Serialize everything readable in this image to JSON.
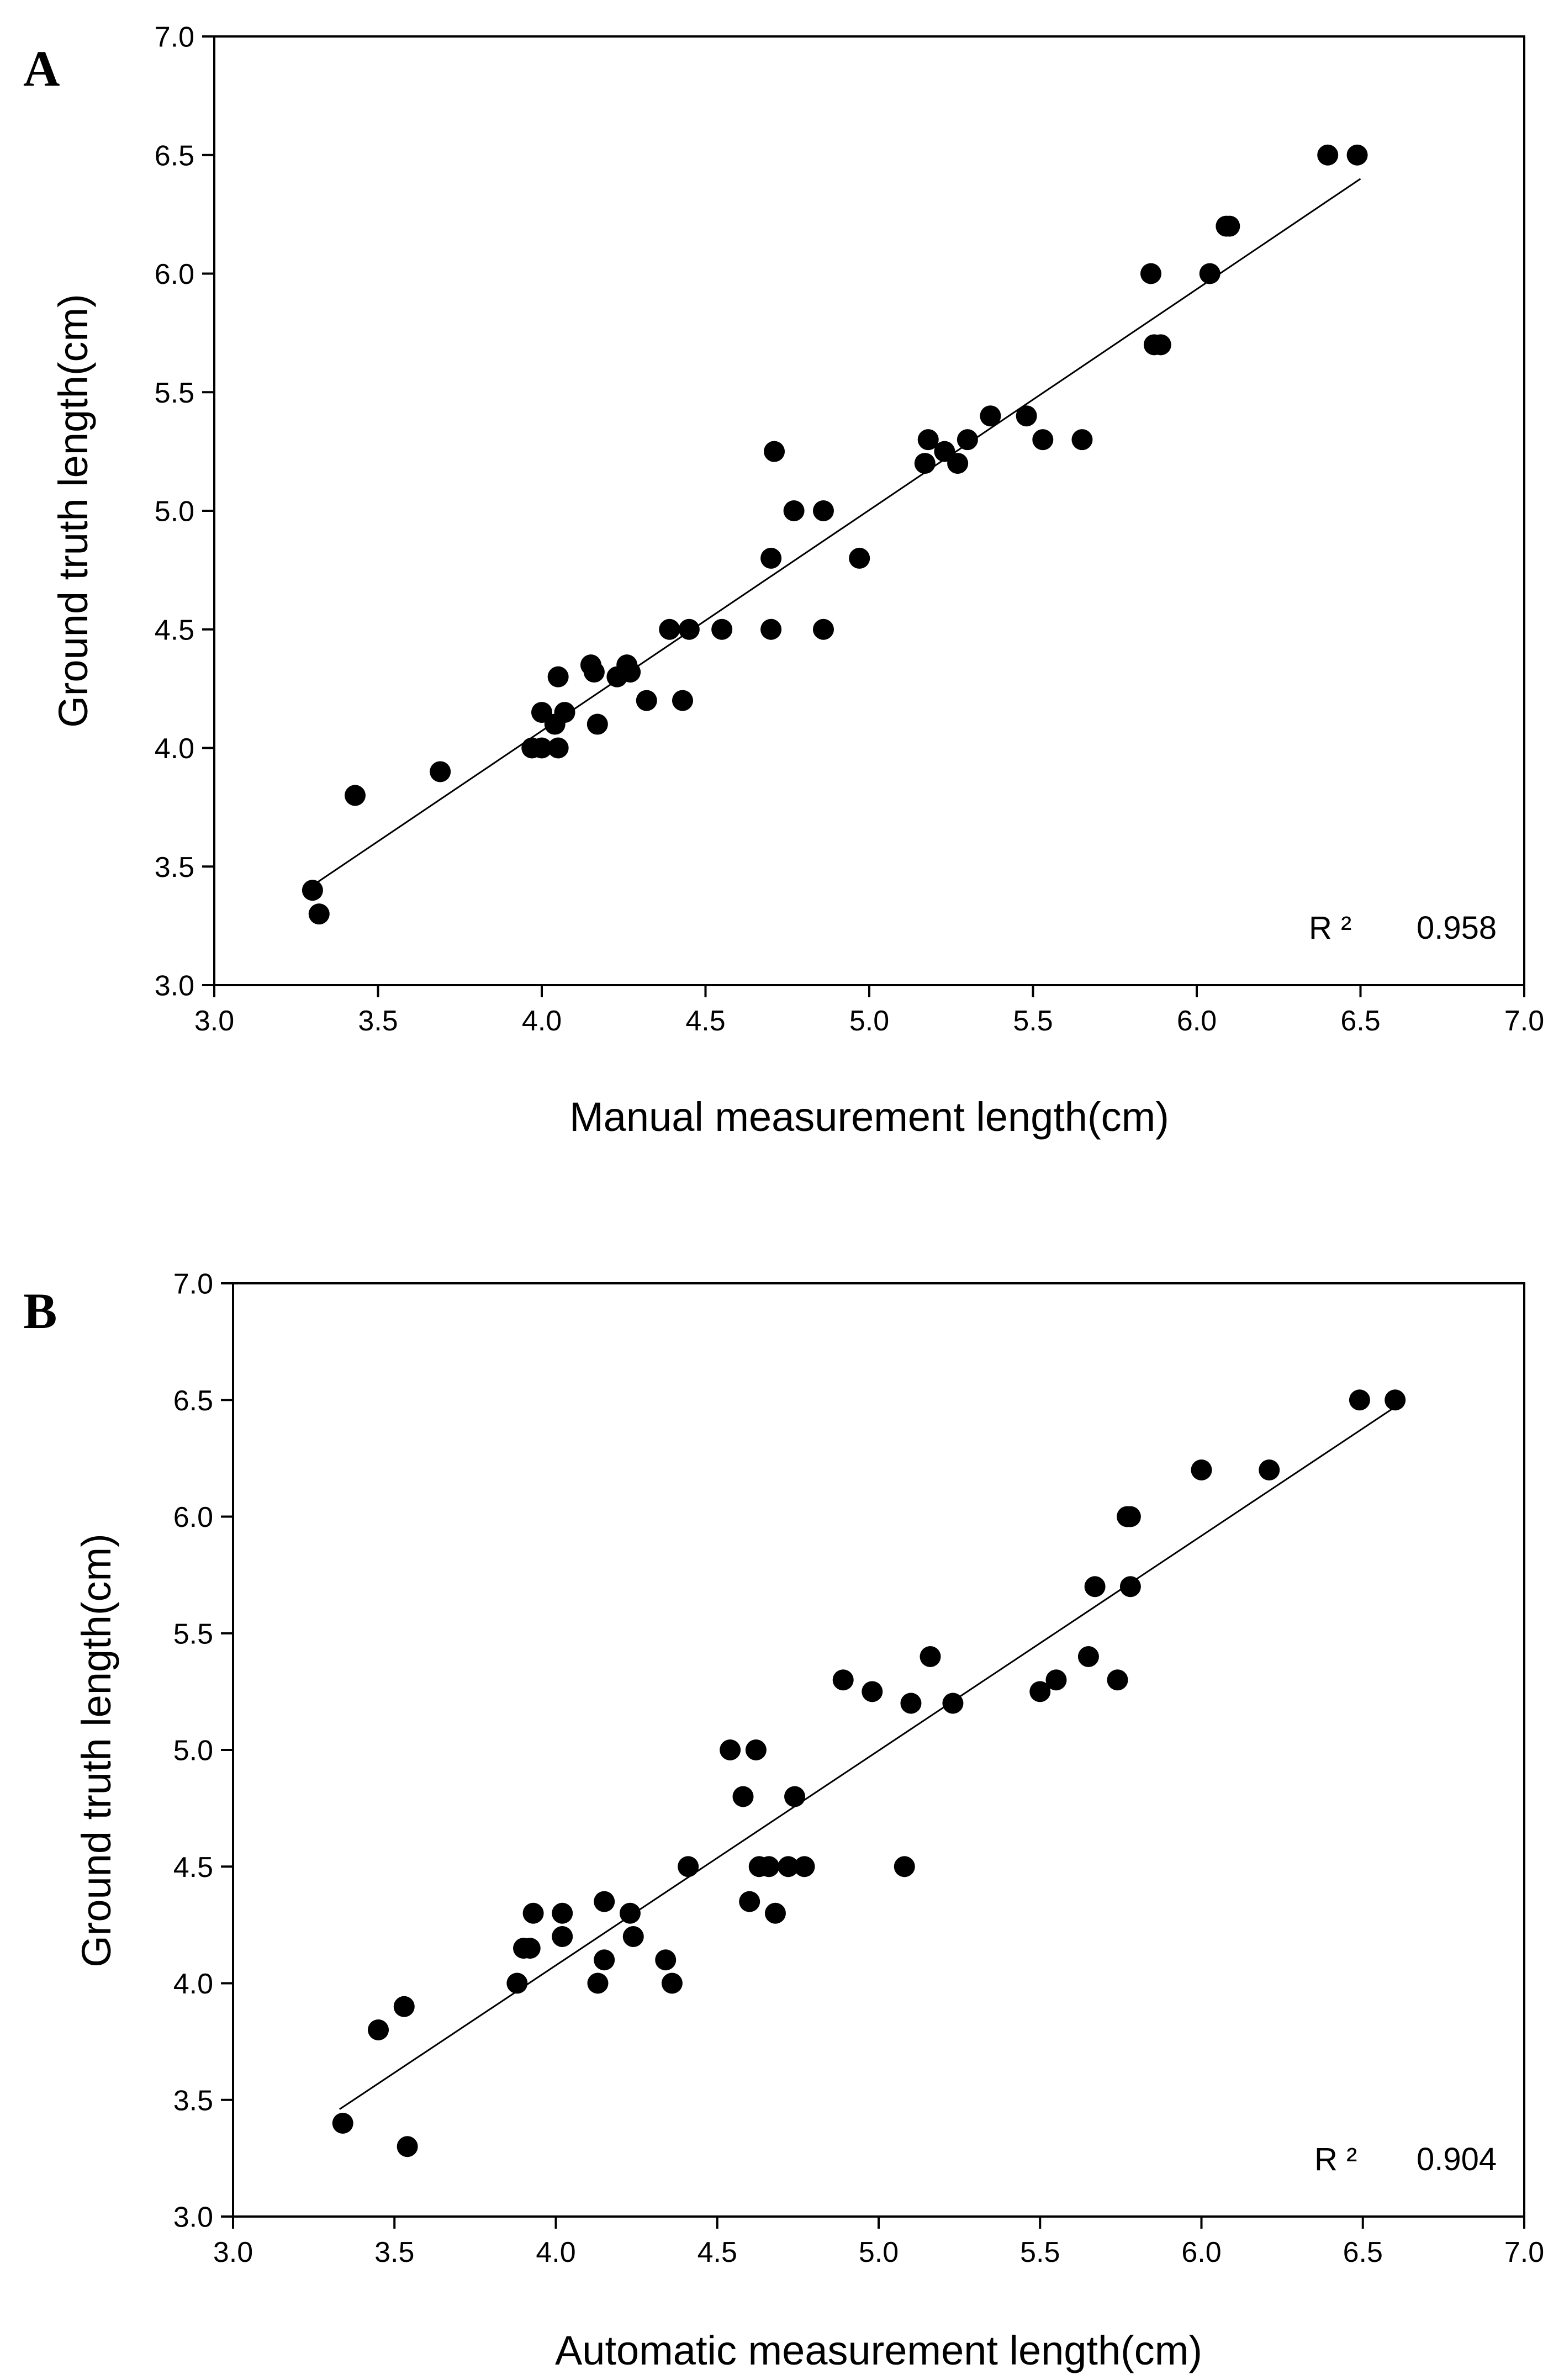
{
  "figure": {
    "background": "#ffffff",
    "point_color": "#000000",
    "line_color": "#000000"
  },
  "chart_data": [
    {
      "panel_label": "A",
      "type": "scatter",
      "title": "",
      "xlabel": "Manual measurement length(cm)",
      "ylabel": "Ground truth length(cm)",
      "xlim": [
        3.0,
        7.0
      ],
      "ylim": [
        3.0,
        7.0
      ],
      "xticks": [
        "3.0",
        "3.5",
        "4.0",
        "4.5",
        "5.0",
        "5.5",
        "6.0",
        "6.5",
        "7.0"
      ],
      "yticks": [
        "3.0",
        "3.5",
        "4.0",
        "4.5",
        "5.0",
        "5.5",
        "6.0",
        "6.5",
        "7.0"
      ],
      "grid": false,
      "r2_label": "R ²",
      "r2_value": "0.958",
      "regression": {
        "x": [
          3.3,
          6.5
        ],
        "y": [
          3.42,
          6.4
        ]
      },
      "points": [
        [
          3.3,
          3.4
        ],
        [
          3.32,
          3.3
        ],
        [
          3.43,
          3.8
        ],
        [
          3.69,
          3.9
        ],
        [
          3.97,
          4.0
        ],
        [
          4.0,
          4.0
        ],
        [
          4.0,
          4.15
        ],
        [
          4.04,
          4.1
        ],
        [
          4.05,
          4.3
        ],
        [
          4.05,
          4.0
        ],
        [
          4.07,
          4.15
        ],
        [
          4.15,
          4.35
        ],
        [
          4.16,
          4.32
        ],
        [
          4.17,
          4.1
        ],
        [
          4.23,
          4.3
        ],
        [
          4.26,
          4.35
        ],
        [
          4.27,
          4.32
        ],
        [
          4.32,
          4.2
        ],
        [
          4.39,
          4.5
        ],
        [
          4.43,
          4.2
        ],
        [
          4.45,
          4.5
        ],
        [
          4.55,
          4.5
        ],
        [
          4.7,
          4.5
        ],
        [
          4.7,
          4.8
        ],
        [
          4.71,
          5.25
        ],
        [
          4.77,
          5.0
        ],
        [
          4.86,
          5.0
        ],
        [
          4.86,
          4.5
        ],
        [
          4.97,
          4.8
        ],
        [
          5.17,
          5.2
        ],
        [
          5.18,
          5.3
        ],
        [
          5.23,
          5.25
        ],
        [
          5.27,
          5.2
        ],
        [
          5.3,
          5.3
        ],
        [
          5.37,
          5.4
        ],
        [
          5.48,
          5.4
        ],
        [
          5.53,
          5.3
        ],
        [
          5.65,
          5.3
        ],
        [
          5.86,
          6.0
        ],
        [
          5.87,
          5.7
        ],
        [
          5.89,
          5.7
        ],
        [
          6.04,
          6.0
        ],
        [
          6.09,
          6.2
        ],
        [
          6.1,
          6.2
        ],
        [
          6.4,
          6.5
        ],
        [
          6.49,
          6.5
        ]
      ]
    },
    {
      "panel_label": "B",
      "type": "scatter",
      "title": "",
      "xlabel": "Automatic measurement length(cm)",
      "ylabel": "Ground truth length(cm)",
      "xlim": [
        3.0,
        7.0
      ],
      "ylim": [
        3.0,
        7.0
      ],
      "xticks": [
        "3.0",
        "3.5",
        "4.0",
        "4.5",
        "5.0",
        "5.5",
        "6.0",
        "6.5",
        "7.0"
      ],
      "yticks": [
        "3.0",
        "3.5",
        "4.0",
        "4.5",
        "5.0",
        "5.5",
        "6.0",
        "6.5",
        "7.0"
      ],
      "grid": false,
      "r2_label": "R ²",
      "r2_value": "0.904",
      "regression": {
        "x": [
          3.33,
          6.6
        ],
        "y": [
          3.46,
          6.47
        ]
      },
      "points": [
        [
          3.34,
          3.4
        ],
        [
          3.45,
          3.8
        ],
        [
          3.53,
          3.9
        ],
        [
          3.54,
          3.3
        ],
        [
          3.88,
          4.0
        ],
        [
          3.9,
          4.15
        ],
        [
          3.92,
          4.15
        ],
        [
          3.93,
          4.3
        ],
        [
          4.02,
          4.3
        ],
        [
          4.02,
          4.2
        ],
        [
          4.13,
          4.0
        ],
        [
          4.15,
          4.35
        ],
        [
          4.15,
          4.1
        ],
        [
          4.23,
          4.3
        ],
        [
          4.24,
          4.2
        ],
        [
          4.34,
          4.1
        ],
        [
          4.36,
          4.0
        ],
        [
          4.41,
          4.5
        ],
        [
          4.54,
          5.0
        ],
        [
          4.58,
          4.8
        ],
        [
          4.6,
          4.35
        ],
        [
          4.62,
          5.0
        ],
        [
          4.63,
          4.5
        ],
        [
          4.66,
          4.5
        ],
        [
          4.68,
          4.3
        ],
        [
          4.72,
          4.5
        ],
        [
          4.74,
          4.8
        ],
        [
          4.77,
          4.5
        ],
        [
          4.89,
          5.3
        ],
        [
          4.98,
          5.25
        ],
        [
          5.08,
          4.5
        ],
        [
          5.1,
          5.2
        ],
        [
          5.16,
          5.4
        ],
        [
          5.23,
          5.2
        ],
        [
          5.5,
          5.25
        ],
        [
          5.55,
          5.3
        ],
        [
          5.65,
          5.4
        ],
        [
          5.67,
          5.7
        ],
        [
          5.74,
          5.3
        ],
        [
          5.77,
          6.0
        ],
        [
          5.78,
          6.0
        ],
        [
          5.78,
          5.7
        ],
        [
          6.0,
          6.2
        ],
        [
          6.21,
          6.2
        ],
        [
          6.49,
          6.5
        ],
        [
          6.6,
          6.5
        ]
      ]
    }
  ]
}
